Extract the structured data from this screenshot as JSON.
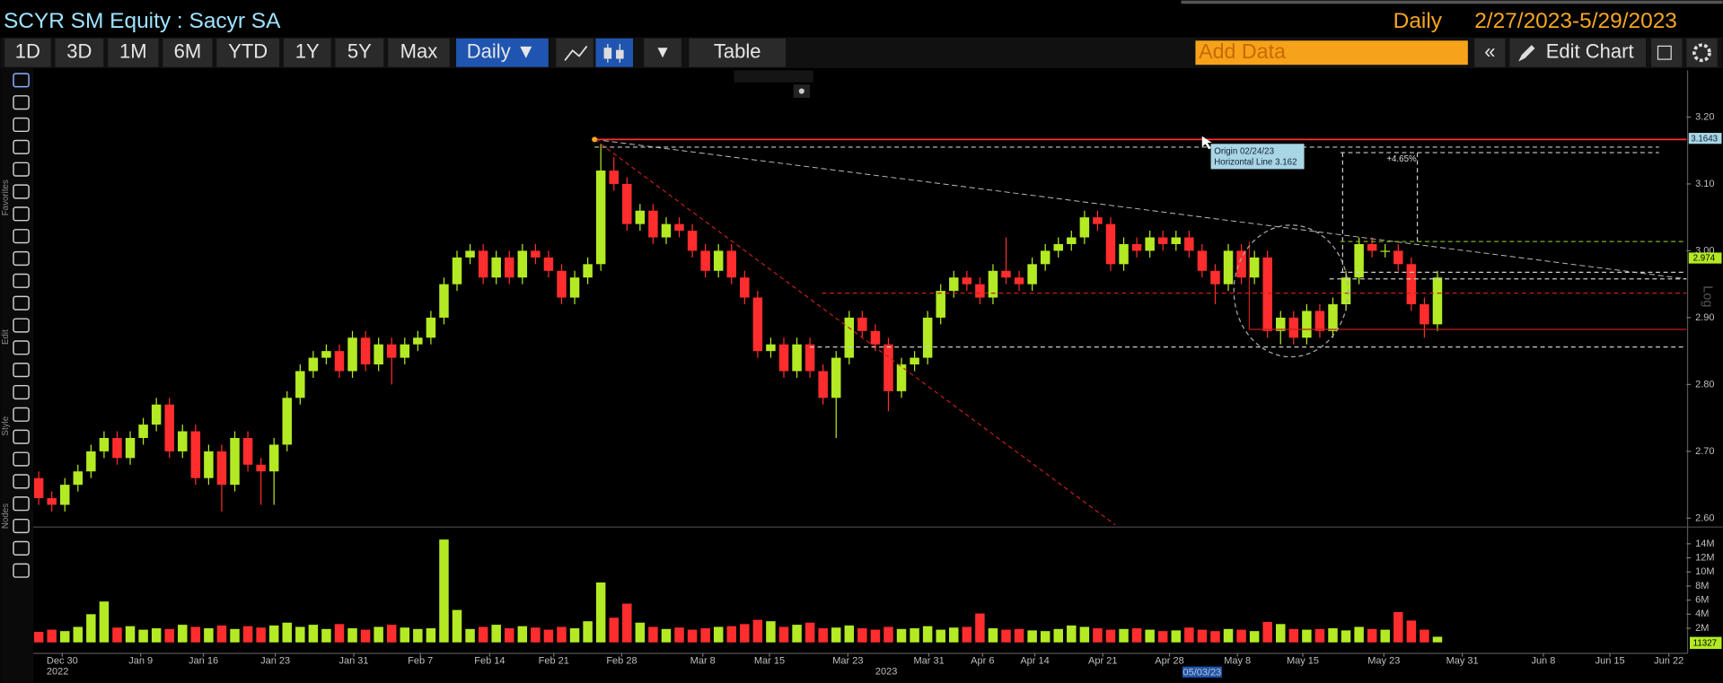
{
  "header": {
    "title": "SCYR SM Equity : Sacyr SA",
    "frequency": "Daily",
    "date_range": "2/27/2023-5/29/2023"
  },
  "toolbar": {
    "periods": [
      "1D",
      "3D",
      "1M",
      "6M",
      "YTD",
      "1Y",
      "5Y",
      "Max"
    ],
    "frequency_button": "Daily ▼",
    "table_button": "Table",
    "add_data": "Add Data",
    "edit_chart": "Edit Chart"
  },
  "side_toolbar": {
    "sections": [
      "Favorites",
      "Edit",
      "Style",
      "Nodes"
    ]
  },
  "chart_data": [
    {
      "type": "candlestick",
      "up_color": "#b3ea24",
      "down_color": "#ff2d2d",
      "open": [
        2.66,
        2.63,
        2.62,
        2.65,
        2.67,
        2.7,
        2.72,
        2.69,
        2.72,
        2.74,
        2.77,
        2.7,
        2.73,
        2.66,
        2.7,
        2.65,
        2.72,
        2.68,
        2.67,
        2.71,
        2.78,
        2.82,
        2.84,
        2.85,
        2.82,
        2.87,
        2.83,
        2.86,
        2.84,
        2.86,
        2.87,
        2.9,
        2.95,
        2.99,
        3.0,
        2.96,
        2.99,
        2.96,
        3.0,
        2.99,
        2.97,
        2.93,
        2.96,
        2.98,
        3.12,
        3.1,
        3.04,
        3.06,
        3.02,
        3.04,
        3.03,
        3.0,
        2.97,
        3.0,
        2.96,
        2.93,
        2.85,
        2.86,
        2.82,
        2.86,
        2.82,
        2.78,
        2.84,
        2.9,
        2.88,
        2.86,
        2.79,
        2.83,
        2.84,
        2.9,
        2.94,
        2.96,
        2.95,
        2.93,
        2.97,
        2.96,
        2.95,
        2.98,
        3.0,
        3.01,
        3.02,
        3.05,
        3.04,
        2.98,
        3.01,
        3.0,
        3.02,
        3.01,
        3.02,
        3.0,
        2.97,
        2.95,
        3.0,
        2.96,
        2.99,
        2.88,
        2.9,
        2.87,
        2.91,
        2.88,
        2.92,
        2.96,
        3.01,
        3.0,
        3.0,
        2.98,
        2.92,
        2.89
      ],
      "high": [
        2.67,
        2.64,
        2.66,
        2.68,
        2.71,
        2.73,
        2.73,
        2.73,
        2.75,
        2.78,
        2.78,
        2.74,
        2.74,
        2.71,
        2.71,
        2.73,
        2.73,
        2.69,
        2.72,
        2.79,
        2.83,
        2.85,
        2.86,
        2.86,
        2.88,
        2.88,
        2.87,
        2.87,
        2.87,
        2.88,
        2.91,
        2.96,
        3.0,
        3.01,
        3.01,
        3.0,
        3.0,
        3.01,
        3.01,
        3.0,
        2.98,
        2.97,
        2.99,
        3.16,
        3.14,
        3.11,
        3.07,
        3.07,
        3.05,
        3.05,
        3.04,
        3.01,
        3.01,
        3.01,
        2.97,
        2.94,
        2.87,
        2.87,
        2.87,
        2.87,
        2.83,
        2.85,
        2.91,
        2.91,
        2.89,
        2.87,
        2.84,
        2.85,
        2.91,
        2.95,
        2.97,
        2.97,
        2.96,
        2.98,
        3.02,
        2.97,
        2.99,
        3.01,
        3.02,
        3.03,
        3.06,
        3.06,
        3.05,
        3.02,
        3.02,
        3.03,
        3.03,
        3.03,
        3.03,
        3.01,
        2.98,
        3.01,
        3.01,
        3.0,
        3.0,
        2.91,
        2.91,
        2.92,
        2.92,
        2.93,
        2.97,
        3.02,
        3.02,
        3.01,
        3.01,
        2.99,
        2.93,
        2.97
      ],
      "low": [
        2.62,
        2.61,
        2.61,
        2.64,
        2.66,
        2.69,
        2.68,
        2.68,
        2.71,
        2.73,
        2.69,
        2.69,
        2.65,
        2.65,
        2.61,
        2.64,
        2.67,
        2.62,
        2.62,
        2.7,
        2.77,
        2.81,
        2.83,
        2.81,
        2.81,
        2.82,
        2.82,
        2.8,
        2.83,
        2.85,
        2.86,
        2.89,
        2.94,
        2.98,
        2.95,
        2.95,
        2.95,
        2.95,
        2.98,
        2.96,
        2.92,
        2.92,
        2.95,
        2.97,
        3.09,
        3.03,
        3.03,
        3.01,
        3.01,
        3.02,
        2.99,
        2.96,
        2.96,
        2.95,
        2.92,
        2.84,
        2.84,
        2.81,
        2.81,
        2.81,
        2.77,
        2.72,
        2.83,
        2.87,
        2.85,
        2.76,
        2.78,
        2.82,
        2.83,
        2.89,
        2.93,
        2.94,
        2.92,
        2.92,
        2.95,
        2.94,
        2.94,
        2.97,
        2.99,
        3.0,
        3.01,
        3.03,
        2.97,
        2.97,
        2.99,
        2.99,
        3.0,
        3.0,
        2.99,
        2.96,
        2.92,
        2.94,
        2.95,
        2.95,
        2.87,
        2.86,
        2.86,
        2.86,
        2.87,
        2.87,
        2.91,
        2.95,
        2.99,
        2.99,
        2.97,
        2.91,
        2.87,
        2.88
      ],
      "close": [
        2.63,
        2.62,
        2.65,
        2.67,
        2.7,
        2.72,
        2.69,
        2.72,
        2.74,
        2.77,
        2.7,
        2.73,
        2.66,
        2.7,
        2.65,
        2.72,
        2.68,
        2.67,
        2.71,
        2.78,
        2.82,
        2.84,
        2.85,
        2.82,
        2.87,
        2.83,
        2.86,
        2.84,
        2.86,
        2.87,
        2.9,
        2.95,
        2.99,
        3.0,
        2.96,
        2.99,
        2.96,
        3.0,
        2.99,
        2.97,
        2.93,
        2.96,
        2.98,
        3.12,
        3.1,
        3.04,
        3.06,
        3.02,
        3.04,
        3.03,
        3.0,
        2.97,
        3.0,
        2.96,
        2.93,
        2.85,
        2.86,
        2.82,
        2.86,
        2.82,
        2.78,
        2.84,
        2.9,
        2.88,
        2.86,
        2.79,
        2.83,
        2.84,
        2.9,
        2.94,
        2.96,
        2.95,
        2.93,
        2.97,
        2.96,
        2.95,
        2.98,
        3.0,
        3.01,
        3.02,
        3.05,
        3.04,
        2.98,
        3.01,
        3.0,
        3.02,
        3.01,
        3.02,
        3.0,
        2.97,
        2.95,
        3.0,
        2.96,
        2.99,
        2.88,
        2.9,
        2.87,
        2.91,
        2.88,
        2.92,
        2.96,
        3.01,
        3.0,
        3.0,
        2.98,
        2.92,
        2.89,
        2.96
      ],
      "xlim": [
        -0.42,
        126.05
      ],
      "xticks": [
        {
          "value": 1.8,
          "label": "Dec 30"
        },
        {
          "value": 7.8,
          "label": "Jan 9"
        },
        {
          "value": 12.6,
          "label": "Jan 16"
        },
        {
          "value": 18.1,
          "label": "Jan 23"
        },
        {
          "value": 24.1,
          "label": "Jan 31"
        },
        {
          "value": 29.2,
          "label": "Feb 7"
        },
        {
          "value": 34.5,
          "label": "Feb 14"
        },
        {
          "value": 39.4,
          "label": "Feb 21"
        },
        {
          "value": 44.6,
          "label": "Feb 28"
        },
        {
          "value": 50.8,
          "label": "Mar 8"
        },
        {
          "value": 55.9,
          "label": "Mar 15"
        },
        {
          "value": 61.9,
          "label": "Mar 23"
        },
        {
          "value": 68.1,
          "label": "Mar 31"
        },
        {
          "value": 72.2,
          "label": "Apr 6"
        },
        {
          "value": 76.2,
          "label": "Apr 14"
        },
        {
          "value": 81.4,
          "label": "Apr 21"
        },
        {
          "value": 86.5,
          "label": "Apr 28"
        },
        {
          "value": 91.7,
          "label": "May 8"
        },
        {
          "value": 96.7,
          "label": "May 15"
        },
        {
          "value": 102.9,
          "label": "May 23"
        },
        {
          "value": 108.9,
          "label": "May 31"
        },
        {
          "value": 115.1,
          "label": "Jun 8"
        },
        {
          "value": 120.2,
          "label": "Jun 15"
        },
        {
          "value": 124.7,
          "label": "Jun 22"
        }
      ],
      "year_ticks": [
        {
          "value": 0.6,
          "label": "2022"
        },
        {
          "value": 64.0,
          "label": "2023"
        }
      ],
      "cursor_date": {
        "value": 89.0,
        "label": "05/03/23"
      },
      "ylim": [
        2.59,
        3.27
      ],
      "yticks": [
        {
          "value": 2.6,
          "label": "2.60"
        },
        {
          "value": 2.7,
          "label": "2.70"
        },
        {
          "value": 2.8,
          "label": "2.80"
        },
        {
          "value": 2.9,
          "label": "2.90"
        },
        {
          "value": 3.0,
          "label": "3.00"
        },
        {
          "value": 3.1,
          "label": "3.10"
        },
        {
          "value": 3.2,
          "label": "3.20"
        }
      ],
      "grid": false,
      "scale_button": "Log",
      "price_tags": [
        "3.1643",
        "2.974"
      ],
      "annotations": {
        "origin": "Origin 02/24/23",
        "line": "Horizontal Line 3.162",
        "change": "+4.65%"
      }
    },
    {
      "type": "bar",
      "values": [
        1.5,
        1.8,
        1.6,
        2.2,
        4.0,
        5.8,
        2.1,
        2.3,
        1.8,
        2.0,
        1.9,
        2.5,
        2.2,
        2.0,
        2.4,
        1.9,
        2.3,
        2.1,
        2.4,
        2.8,
        2.2,
        2.5,
        1.9,
        2.6,
        2.0,
        1.8,
        2.2,
        2.5,
        2.1,
        1.9,
        2.0,
        14.6,
        4.6,
        1.9,
        2.2,
        2.5,
        2.0,
        2.3,
        2.1,
        1.8,
        2.2,
        2.0,
        3.0,
        8.5,
        3.5,
        5.5,
        2.8,
        2.2,
        1.9,
        2.1,
        1.8,
        2.0,
        2.2,
        2.3,
        2.6,
        3.2,
        3.0,
        2.2,
        2.5,
        2.8,
        2.0,
        2.1,
        2.4,
        2.0,
        1.8,
        2.2,
        1.9,
        2.0,
        2.3,
        1.8,
        2.1,
        2.2,
        4.1,
        2.0,
        1.8,
        1.9,
        1.7,
        1.6,
        1.9,
        2.4,
        2.2,
        2.0,
        1.8,
        1.9,
        2.0,
        1.8,
        1.6,
        1.7,
        2.1,
        1.8,
        1.6,
        1.9,
        1.8,
        1.6,
        2.9,
        2.6,
        1.9,
        1.8,
        1.9,
        2.0,
        1.7,
        2.2,
        1.9,
        1.8,
        4.3,
        3.1,
        1.8,
        0.8
      ],
      "ylim": [
        0,
        15.9
      ],
      "yticks": [
        {
          "value": 2,
          "label": "2M"
        },
        {
          "value": 4,
          "label": "4M"
        },
        {
          "value": 6,
          "label": "6M"
        },
        {
          "value": 8,
          "label": "8M"
        },
        {
          "value": 10,
          "label": "10M"
        },
        {
          "value": 12,
          "label": "12M"
        },
        {
          "value": 14,
          "label": "14M"
        }
      ],
      "last_volume": "11327"
    }
  ]
}
